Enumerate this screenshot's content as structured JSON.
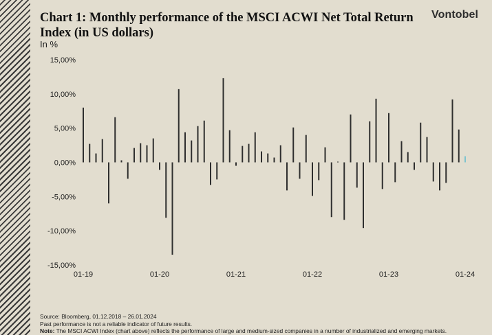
{
  "header": {
    "title": "Chart 1: Monthly performance of the MSCI ACWI Net Total Return Index (in US dollars)",
    "unit": "In %",
    "logo": "Vontobel"
  },
  "colors": {
    "bar": "#2e2e2e",
    "last_bar": "#7ec4cf",
    "background": "#e2ddcf"
  },
  "chart_data": {
    "type": "bar",
    "title": "Chart 1: Monthly performance of the MSCI ACWI Net Total Return Index (in US dollars)",
    "ylabel": "In %",
    "xlabel": "",
    "ylim": [
      -15,
      15
    ],
    "y_ticks": [
      15,
      10,
      5,
      0,
      -5,
      -10,
      -15
    ],
    "y_tick_labels": [
      "15,00%",
      "10,00%",
      "5,00%",
      "0,00%",
      "-5,00%",
      "-10,00%",
      "-15,00%"
    ],
    "x_tick_labels": [
      "01-19",
      "01-20",
      "01-21",
      "01-22",
      "01-23",
      "01-24"
    ],
    "grid": false,
    "categories": [
      "2019-01",
      "2019-02",
      "2019-03",
      "2019-04",
      "2019-05",
      "2019-06",
      "2019-07",
      "2019-08",
      "2019-09",
      "2019-10",
      "2019-11",
      "2019-12",
      "2020-01",
      "2020-02",
      "2020-03",
      "2020-04",
      "2020-05",
      "2020-06",
      "2020-07",
      "2020-08",
      "2020-09",
      "2020-10",
      "2020-11",
      "2020-12",
      "2021-01",
      "2021-02",
      "2021-03",
      "2021-04",
      "2021-05",
      "2021-06",
      "2021-07",
      "2021-08",
      "2021-09",
      "2021-10",
      "2021-11",
      "2021-12",
      "2022-01",
      "2022-02",
      "2022-03",
      "2022-04",
      "2022-05",
      "2022-06",
      "2022-07",
      "2022-08",
      "2022-09",
      "2022-10",
      "2022-11",
      "2022-12",
      "2023-01",
      "2023-02",
      "2023-03",
      "2023-04",
      "2023-05",
      "2023-06",
      "2023-07",
      "2023-08",
      "2023-09",
      "2023-10",
      "2023-11",
      "2023-12",
      "2024-01"
    ],
    "values": [
      8.0,
      2.7,
      1.3,
      3.4,
      -6.0,
      6.6,
      0.3,
      -2.4,
      2.1,
      2.8,
      2.5,
      3.5,
      -1.1,
      -8.1,
      -13.5,
      10.7,
      4.4,
      3.2,
      5.3,
      6.1,
      -3.3,
      -2.5,
      12.3,
      4.7,
      -0.5,
      2.4,
      2.7,
      4.4,
      1.6,
      1.3,
      0.7,
      2.5,
      -4.1,
      5.1,
      -2.4,
      4.0,
      -4.9,
      -2.6,
      2.2,
      -8.0,
      0.1,
      -8.4,
      7.0,
      -3.7,
      -9.6,
      6.0,
      9.3,
      -3.9,
      7.2,
      -2.9,
      3.1,
      1.5,
      -1.1,
      5.8,
      3.7,
      -2.8,
      -4.1,
      -3.0,
      9.2,
      4.8,
      0.9
    ],
    "highlight_last": true
  },
  "footer": {
    "source": "Source: Bloomberg, 01.12.2018 – 26.01.2024",
    "disclaimer": "Past performance is not a reliable indicator of future results.",
    "note_label": "Note:",
    "note_text": " The MSCI ACWI Index (chart above) reflects the performance of large and medium-sized companies in a number of industrialized and emerging markets."
  }
}
